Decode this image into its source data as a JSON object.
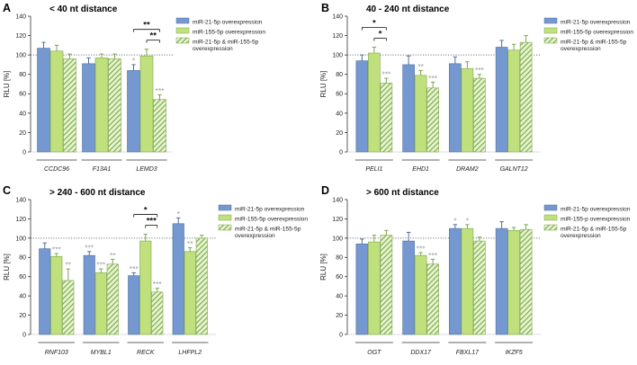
{
  "figure": {
    "colors": {
      "blue": "#7598d1",
      "blue_stroke": "#4d6f9f",
      "green": "#bfe07d",
      "green_stroke": "#7ea64b",
      "hatch_bg": "#e7f3cf",
      "hatch_line": "#74a846",
      "sig_grey": "#9a9a9a",
      "axis": "#333333"
    },
    "y_axis_label": "RLU [%]"
  },
  "chart_data": [
    {
      "type": "bar",
      "panel": "A",
      "title": "< 40 nt distance",
      "ylabel": "RLU [%]",
      "ylim": [
        0,
        140
      ],
      "yticks": [
        0,
        20,
        40,
        60,
        80,
        100,
        120,
        140
      ],
      "reference_line": 100,
      "categories": [
        "CCDC96",
        "F13A1",
        "LEMD3"
      ],
      "series": [
        {
          "name": "miR-21-5p overexpression",
          "style": "blue",
          "values": [
            107,
            91,
            84
          ],
          "errors": [
            6,
            6,
            6
          ],
          "stars": [
            "",
            "",
            "*"
          ]
        },
        {
          "name": "miR-155-5p overexpression",
          "style": "green",
          "values": [
            104,
            97,
            99
          ],
          "errors": [
            6,
            4,
            7
          ],
          "stars": [
            "",
            "",
            ""
          ]
        },
        {
          "name": "miR-21-5p & miR-155-5p overexpression",
          "style": "hatch",
          "values": [
            96,
            96,
            54
          ],
          "errors": [
            5,
            5,
            5
          ],
          "stars": [
            "",
            "",
            "***"
          ]
        }
      ],
      "brackets": [
        {
          "category": 2,
          "from": 0,
          "to": 2,
          "label": "**"
        },
        {
          "category": 2,
          "from": 1,
          "to": 2,
          "label": "**"
        }
      ],
      "legend": [
        "miR-21-5p overexpression",
        "miR-155-5p overexpression",
        "miR-21-5p & miR-155-5p",
        "overexpression"
      ]
    },
    {
      "type": "bar",
      "panel": "B",
      "title": "40 - 240 nt distance",
      "ylabel": "RLU [%]",
      "ylim": [
        0,
        140
      ],
      "yticks": [
        0,
        20,
        40,
        60,
        80,
        100,
        120,
        140
      ],
      "reference_line": 100,
      "categories": [
        "PELI1",
        "EHD1",
        "DRAM2",
        "GALNT12"
      ],
      "series": [
        {
          "name": "miR-21-5p overexpression",
          "style": "blue",
          "values": [
            94,
            90,
            91,
            108
          ],
          "errors": [
            6,
            9,
            7,
            7
          ],
          "stars": [
            "",
            "",
            "",
            ""
          ]
        },
        {
          "name": "miR-155-5p overexpression",
          "style": "green",
          "values": [
            102,
            79,
            86,
            105
          ],
          "errors": [
            6,
            5,
            7,
            6
          ],
          "stars": [
            "",
            "**",
            "",
            ""
          ]
        },
        {
          "name": "miR-21-5p & miR-155-5p overexpression",
          "style": "hatch",
          "values": [
            71,
            66,
            76,
            113
          ],
          "errors": [
            5,
            6,
            4,
            7
          ],
          "stars": [
            "***",
            "***",
            "***",
            ""
          ]
        }
      ],
      "brackets": [
        {
          "category": 0,
          "from": 0,
          "to": 2,
          "label": "*"
        },
        {
          "category": 0,
          "from": 1,
          "to": 2,
          "label": "*"
        }
      ],
      "legend": [
        "miR-21-5p overexpression",
        "miR-155-5p overexpression",
        "miR-21-5p & miR-155-5p",
        "overexpression"
      ]
    },
    {
      "type": "bar",
      "panel": "C",
      "title": "> 240 - 600 nt distance",
      "ylabel": "RLU [%]",
      "ylim": [
        0,
        140
      ],
      "yticks": [
        0,
        20,
        40,
        60,
        80,
        100,
        120,
        140
      ],
      "reference_line": 100,
      "categories": [
        "RNF103",
        "MYBL1",
        "RECK",
        "LHFPL2"
      ],
      "series": [
        {
          "name": "miR-21-5p overexpression",
          "style": "blue",
          "values": [
            89,
            82,
            61,
            115
          ],
          "errors": [
            6,
            4,
            3,
            6
          ],
          "stars": [
            "",
            "***",
            "***",
            "*"
          ]
        },
        {
          "name": "miR-155-5p overexpression",
          "style": "green",
          "values": [
            81,
            64,
            97,
            86
          ],
          "errors": [
            3,
            4,
            7,
            4
          ],
          "stars": [
            "***",
            "***",
            "",
            "**"
          ]
        },
        {
          "name": "miR-21-5p & miR-155-5p overexpression",
          "style": "hatch",
          "values": [
            56,
            73,
            44,
            100
          ],
          "errors": [
            12,
            5,
            4,
            3
          ],
          "stars": [
            "**",
            "**",
            "***",
            ""
          ]
        }
      ],
      "brackets": [
        {
          "category": 2,
          "from": 0,
          "to": 2,
          "label": "*"
        },
        {
          "category": 2,
          "from": 1,
          "to": 2,
          "label": "***"
        }
      ],
      "legend": [
        "miR-21-5p overexpression",
        "miR-155-5p overexpression",
        "miR-21-5p & miR-155-5p",
        "overexpression"
      ]
    },
    {
      "type": "bar",
      "panel": "D",
      "title": "> 600 nt distance",
      "ylabel": "RLU [%]",
      "ylim": [
        0,
        140
      ],
      "yticks": [
        0,
        20,
        40,
        60,
        80,
        100,
        120,
        140
      ],
      "reference_line": 100,
      "categories": [
        "OGT",
        "DDX17",
        "FBXL17",
        "IKZF5"
      ],
      "series": [
        {
          "name": "miR-21-5p overexpression",
          "style": "blue",
          "values": [
            94,
            97,
            110,
            110
          ],
          "errors": [
            5,
            9,
            4,
            7
          ],
          "stars": [
            "",
            "",
            "*",
            ""
          ]
        },
        {
          "name": "miR-155-p overexpression",
          "style": "green",
          "values": [
            96,
            82,
            110,
            108
          ],
          "errors": [
            7,
            3,
            4,
            3
          ],
          "stars": [
            "",
            "***",
            "*",
            ""
          ]
        },
        {
          "name": "miR-21-5p & miR-155-5p overexpression",
          "style": "hatch",
          "values": [
            103,
            73,
            97,
            109
          ],
          "errors": [
            5,
            5,
            4,
            5
          ],
          "stars": [
            "",
            "***",
            "",
            ""
          ]
        }
      ],
      "brackets": [],
      "legend": [
        "miR-21-5p overexpression",
        "miR-155-p overexpression",
        "miR-21-5p & miR-155-5p",
        "overexpression"
      ]
    }
  ]
}
